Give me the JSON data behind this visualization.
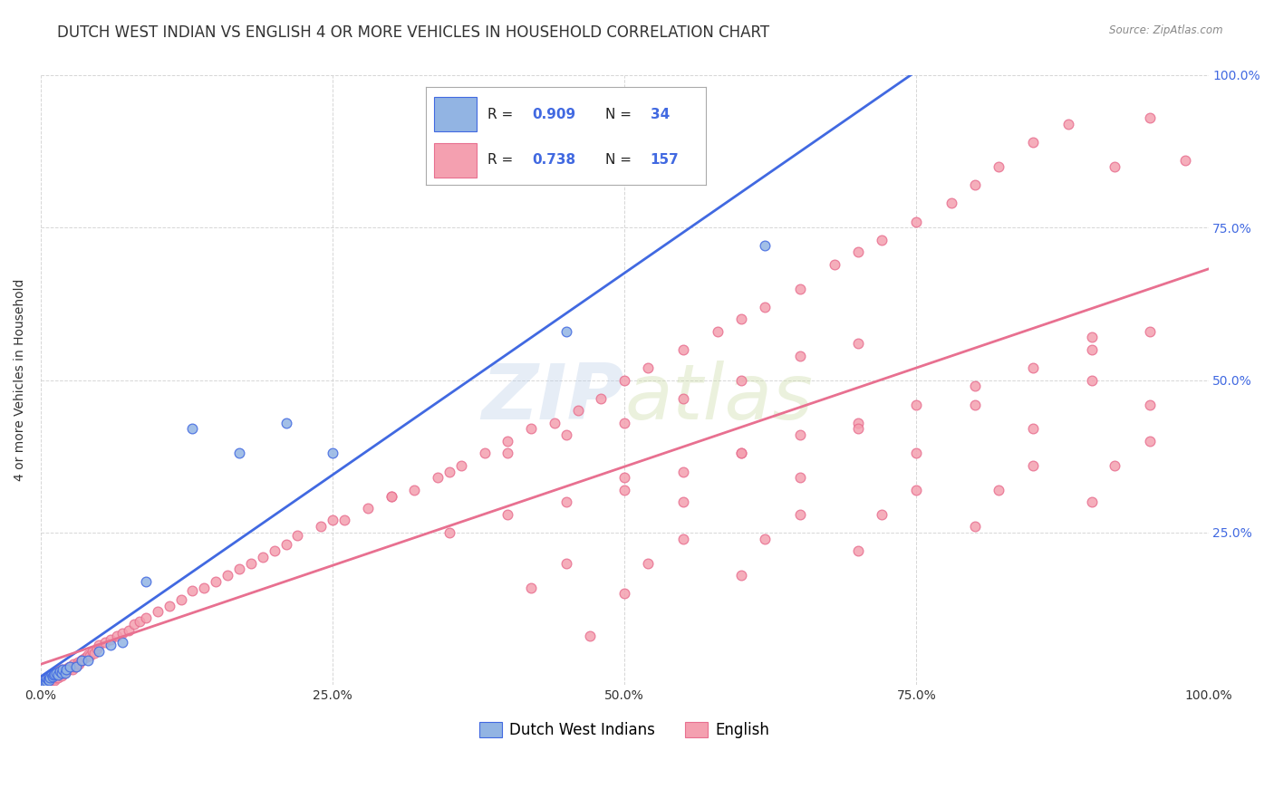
{
  "title": "DUTCH WEST INDIAN VS ENGLISH 4 OR MORE VEHICLES IN HOUSEHOLD CORRELATION CHART",
  "source": "Source: ZipAtlas.com",
  "ylabel": "4 or more Vehicles in Household",
  "xlabel": "",
  "xlim": [
    0,
    1.0
  ],
  "ylim": [
    0,
    1.0
  ],
  "xticks": [
    0.0,
    0.25,
    0.5,
    0.75,
    1.0
  ],
  "yticks": [
    0.0,
    0.25,
    0.5,
    0.75,
    1.0
  ],
  "xticklabels": [
    "0.0%",
    "25.0%",
    "50.0%",
    "75.0%",
    "100.0%"
  ],
  "yticklabels": [
    "",
    "25.0%",
    "50.0%",
    "75.0%",
    "100.0%"
  ],
  "series1_label": "Dutch West Indians",
  "series2_label": "English",
  "series1_color": "#92b4e3",
  "series2_color": "#f4a0b0",
  "series1_line_color": "#4169e1",
  "series2_line_color": "#e87090",
  "watermark": "ZIPatlas",
  "background_color": "#ffffff",
  "grid_color": "#cccccc",
  "title_fontsize": 12,
  "axis_label_fontsize": 10,
  "tick_fontsize": 10,
  "legend_fontsize": 11,
  "dutch_x": [
    0.002,
    0.003,
    0.004,
    0.005,
    0.005,
    0.006,
    0.007,
    0.007,
    0.008,
    0.009,
    0.01,
    0.011,
    0.012,
    0.013,
    0.015,
    0.016,
    0.018,
    0.019,
    0.021,
    0.022,
    0.025,
    0.03,
    0.035,
    0.04,
    0.05,
    0.06,
    0.07,
    0.09,
    0.13,
    0.17,
    0.21,
    0.25,
    0.45,
    0.62
  ],
  "dutch_y": [
    0.003,
    0.005,
    0.004,
    0.007,
    0.012,
    0.009,
    0.015,
    0.008,
    0.013,
    0.018,
    0.014,
    0.016,
    0.018,
    0.02,
    0.017,
    0.022,
    0.02,
    0.025,
    0.02,
    0.025,
    0.03,
    0.03,
    0.04,
    0.04,
    0.055,
    0.065,
    0.07,
    0.17,
    0.42,
    0.38,
    0.43,
    0.38,
    0.58,
    0.72
  ],
  "english_x": [
    0.003,
    0.004,
    0.005,
    0.005,
    0.006,
    0.007,
    0.007,
    0.008,
    0.008,
    0.009,
    0.009,
    0.01,
    0.01,
    0.011,
    0.011,
    0.012,
    0.012,
    0.013,
    0.013,
    0.014,
    0.014,
    0.015,
    0.015,
    0.016,
    0.016,
    0.017,
    0.018,
    0.018,
    0.019,
    0.02,
    0.021,
    0.022,
    0.023,
    0.024,
    0.025,
    0.026,
    0.027,
    0.028,
    0.029,
    0.03,
    0.032,
    0.033,
    0.035,
    0.036,
    0.038,
    0.04,
    0.042,
    0.044,
    0.046,
    0.048,
    0.05,
    0.055,
    0.06,
    0.065,
    0.07,
    0.075,
    0.08,
    0.085,
    0.09,
    0.1,
    0.11,
    0.12,
    0.13,
    0.14,
    0.15,
    0.16,
    0.17,
    0.18,
    0.19,
    0.2,
    0.21,
    0.22,
    0.24,
    0.26,
    0.28,
    0.3,
    0.32,
    0.34,
    0.36,
    0.38,
    0.4,
    0.42,
    0.44,
    0.46,
    0.48,
    0.5,
    0.52,
    0.55,
    0.58,
    0.6,
    0.62,
    0.65,
    0.68,
    0.7,
    0.72,
    0.75,
    0.78,
    0.8,
    0.82,
    0.85,
    0.88,
    0.9,
    0.92,
    0.95,
    0.98,
    0.25,
    0.3,
    0.35,
    0.4,
    0.45,
    0.5,
    0.55,
    0.6,
    0.65,
    0.7,
    0.35,
    0.4,
    0.45,
    0.5,
    0.55,
    0.6,
    0.65,
    0.7,
    0.75,
    0.8,
    0.85,
    0.9,
    0.95,
    0.5,
    0.6,
    0.7,
    0.8,
    0.9,
    0.55,
    0.65,
    0.75,
    0.85,
    0.95,
    0.45,
    0.55,
    0.65,
    0.75,
    0.85,
    0.95,
    0.5,
    0.6,
    0.7,
    0.8,
    0.9,
    0.42,
    0.52,
    0.62,
    0.72,
    0.82,
    0.92,
    0.47
  ],
  "english_y": [
    0.004,
    0.006,
    0.007,
    0.01,
    0.008,
    0.009,
    0.012,
    0.007,
    0.015,
    0.008,
    0.012,
    0.01,
    0.018,
    0.012,
    0.016,
    0.008,
    0.015,
    0.012,
    0.02,
    0.015,
    0.018,
    0.012,
    0.022,
    0.016,
    0.02,
    0.018,
    0.025,
    0.015,
    0.022,
    0.02,
    0.025,
    0.022,
    0.028,
    0.025,
    0.03,
    0.028,
    0.025,
    0.035,
    0.03,
    0.032,
    0.038,
    0.035,
    0.04,
    0.042,
    0.045,
    0.05,
    0.048,
    0.055,
    0.052,
    0.06,
    0.065,
    0.07,
    0.075,
    0.08,
    0.085,
    0.09,
    0.1,
    0.105,
    0.11,
    0.12,
    0.13,
    0.14,
    0.155,
    0.16,
    0.17,
    0.18,
    0.19,
    0.2,
    0.21,
    0.22,
    0.23,
    0.245,
    0.26,
    0.27,
    0.29,
    0.31,
    0.32,
    0.34,
    0.36,
    0.38,
    0.4,
    0.42,
    0.43,
    0.45,
    0.47,
    0.5,
    0.52,
    0.55,
    0.58,
    0.6,
    0.62,
    0.65,
    0.69,
    0.71,
    0.73,
    0.76,
    0.79,
    0.82,
    0.85,
    0.89,
    0.92,
    0.57,
    0.85,
    0.93,
    0.86,
    0.27,
    0.31,
    0.35,
    0.38,
    0.41,
    0.43,
    0.47,
    0.5,
    0.54,
    0.56,
    0.25,
    0.28,
    0.3,
    0.32,
    0.35,
    0.38,
    0.41,
    0.43,
    0.46,
    0.49,
    0.52,
    0.55,
    0.58,
    0.34,
    0.38,
    0.42,
    0.46,
    0.5,
    0.3,
    0.34,
    0.38,
    0.42,
    0.46,
    0.2,
    0.24,
    0.28,
    0.32,
    0.36,
    0.4,
    0.15,
    0.18,
    0.22,
    0.26,
    0.3,
    0.16,
    0.2,
    0.24,
    0.28,
    0.32,
    0.36,
    0.08
  ]
}
